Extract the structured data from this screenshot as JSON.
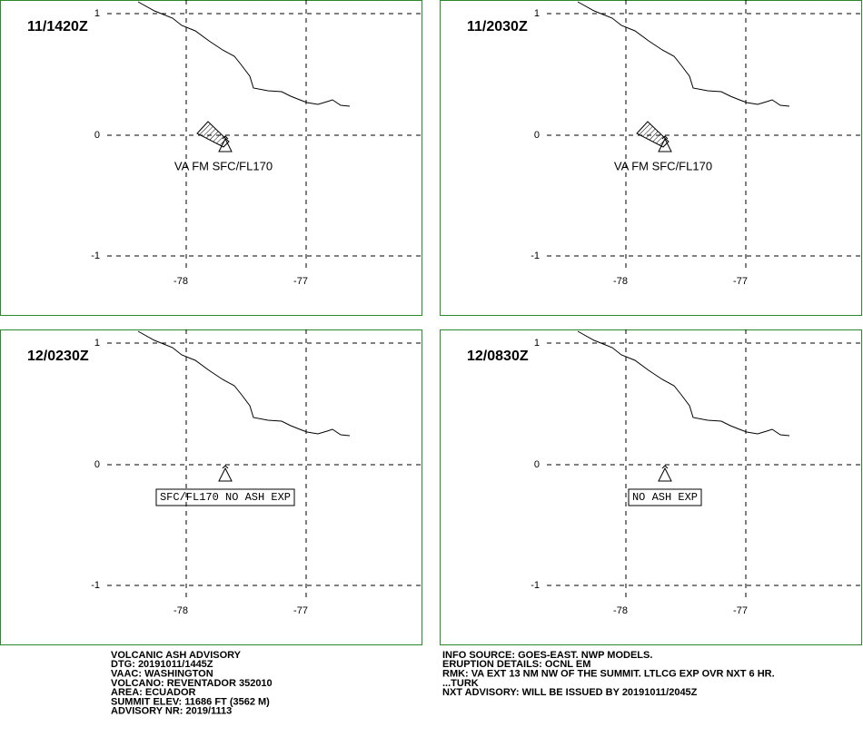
{
  "panels": [
    {
      "time": "11/1420Z",
      "annotation": "VA FM SFC/FL170",
      "ash_cloud": true
    },
    {
      "time": "11/2030Z",
      "annotation": "VA FM SFC/FL170",
      "ash_cloud": true
    },
    {
      "time": "12/0230Z",
      "annotation": "SFC/FL170 NO ASH EXP",
      "ash_cloud": false
    },
    {
      "time": "12/0830Z",
      "annotation": "NO ASH EXP",
      "ash_cloud": false
    }
  ],
  "grid": {
    "lat": [
      "1",
      "0",
      "-1"
    ],
    "lon": [
      "-78",
      "-77"
    ]
  },
  "advisory": {
    "left": [
      "VOLCANIC ASH ADVISORY",
      "DTG: 20191011/1445Z",
      "VAAC: WASHINGTON",
      "VOLCANO: REVENTADOR 352010",
      "AREA: ECUADOR",
      "SUMMIT ELEV: 11686 FT (3562 M)",
      "ADVISORY NR: 2019/1113"
    ],
    "right": [
      "INFO SOURCE: GOES-EAST. NWP MODELS.",
      "ERUPTION DETAILS: OCNL EM",
      "RMK: VA EXT 13 NM NW OF THE SUMMIT. LTLCG EXP OVR NXT 6 HR.",
      "...TURK",
      "NXT ADVISORY: WILL BE ISSUED BY 20191011/2045Z"
    ]
  }
}
